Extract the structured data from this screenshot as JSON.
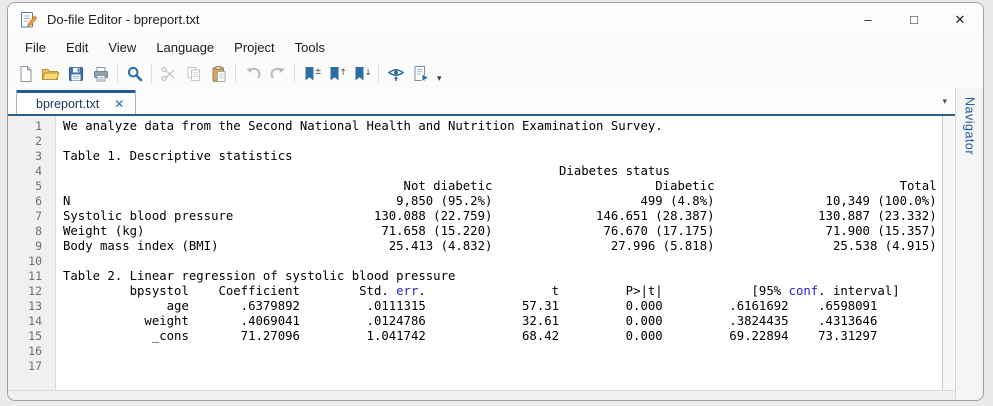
{
  "window": {
    "title": "Do-file Editor - bpreport.txt",
    "minimize_glyph": "–",
    "maximize_glyph": "□",
    "close_glyph": "✕"
  },
  "menu": {
    "items": [
      {
        "label": "File"
      },
      {
        "label": "Edit"
      },
      {
        "label": "View"
      },
      {
        "label": "Language"
      },
      {
        "label": "Project"
      },
      {
        "label": "Tools"
      }
    ]
  },
  "toolbar": {
    "buttons": [
      {
        "name": "new-file",
        "icon": "new-file-icon",
        "enabled": true
      },
      {
        "name": "open-file",
        "icon": "open-folder-icon",
        "enabled": true
      },
      {
        "name": "save-file",
        "icon": "save-floppy-icon",
        "enabled": true
      },
      {
        "name": "print",
        "icon": "printer-icon",
        "enabled": true
      },
      {
        "name": "find",
        "icon": "search-icon",
        "enabled": true
      },
      {
        "name": "cut",
        "icon": "scissors-icon",
        "enabled": false
      },
      {
        "name": "copy",
        "icon": "copy-icon",
        "enabled": false
      },
      {
        "name": "paste",
        "icon": "paste-icon",
        "enabled": true
      },
      {
        "name": "undo",
        "icon": "undo-icon",
        "enabled": false
      },
      {
        "name": "redo",
        "icon": "redo-icon",
        "enabled": false
      },
      {
        "name": "bookmark-toggle",
        "icon": "bookmark-plus-minus-icon",
        "enabled": true
      },
      {
        "name": "bookmark-previous",
        "icon": "bookmark-up-icon",
        "enabled": true
      },
      {
        "name": "bookmark-next",
        "icon": "bookmark-down-icon",
        "enabled": true
      },
      {
        "name": "preview",
        "icon": "eye-icon",
        "enabled": true
      },
      {
        "name": "execute-do",
        "icon": "run-do-file-icon",
        "enabled": true
      }
    ],
    "run_menu_glyph": "▾"
  },
  "tabbar": {
    "tabs": [
      {
        "label": "bpreport.txt",
        "active": true,
        "close_glyph": "✕"
      }
    ],
    "overflow_glyph": "▾"
  },
  "navigator": {
    "label": "Navigator"
  },
  "editor": {
    "colors": {
      "text": "#000000",
      "keyword": "#2424c9",
      "line_number": "#6f6f6f",
      "tab_accent": "#1f5c99",
      "frame_line": "#2d5e86"
    },
    "lines": [
      {
        "n": 1,
        "parts": [
          {
            "t": "We analyze data from the Second National Health and Nutrition Examination Survey."
          }
        ]
      },
      {
        "n": 2,
        "parts": []
      },
      {
        "n": 3,
        "parts": [
          {
            "t": "Table 1. Descriptive statistics"
          }
        ]
      },
      {
        "n": 4,
        "parts": [
          {
            "t": "                                                                   Diabetes status"
          }
        ]
      },
      {
        "n": 5,
        "parts": [
          {
            "t": "                                              Not diabetic                      Diabetic                         Total"
          }
        ]
      },
      {
        "n": 6,
        "parts": [
          {
            "t": "N                                            9,850 (95.2%)                    499 (4.8%)               10,349 (100.0%)"
          }
        ]
      },
      {
        "n": 7,
        "parts": [
          {
            "t": "Systolic blood pressure                   130.088 (22.759)              146.651 (28.387)              130.887 (23.332)"
          }
        ]
      },
      {
        "n": 8,
        "parts": [
          {
            "t": "Weight (kg)                                71.658 (15.220)               76.670 (17.175)               71.900 (15.357)"
          }
        ]
      },
      {
        "n": 9,
        "parts": [
          {
            "t": "Body mass index (BMI)                       25.413 (4.832)                27.996 (5.818)                25.538 (4.915)"
          }
        ]
      },
      {
        "n": 10,
        "parts": []
      },
      {
        "n": 11,
        "parts": [
          {
            "t": "Table 2. Linear regression of systolic blood pressure"
          }
        ]
      },
      {
        "n": 12,
        "parts": [
          {
            "t": "         bpsystol    Coefficient        Std. "
          },
          {
            "t": "err",
            "k": true
          },
          {
            "t": "."
          },
          {
            "t": "                 t         P>|t|            [95% "
          },
          {
            "t": "conf",
            "k": true
          },
          {
            "t": ". interval]"
          }
        ]
      },
      {
        "n": 13,
        "parts": [
          {
            "t": "              age       .6379892         .0111315             57.31         0.000         .6161692    .6598091"
          }
        ]
      },
      {
        "n": 14,
        "parts": [
          {
            "t": "           weight       .4069041         .0124786             32.61         0.000         .3824435    .4313646"
          }
        ]
      },
      {
        "n": 15,
        "parts": [
          {
            "t": "            _cons       71.27096         1.041742             68.42         0.000         69.22894    73.31297"
          }
        ]
      },
      {
        "n": 16,
        "parts": []
      },
      {
        "n": 17,
        "parts": []
      }
    ]
  }
}
